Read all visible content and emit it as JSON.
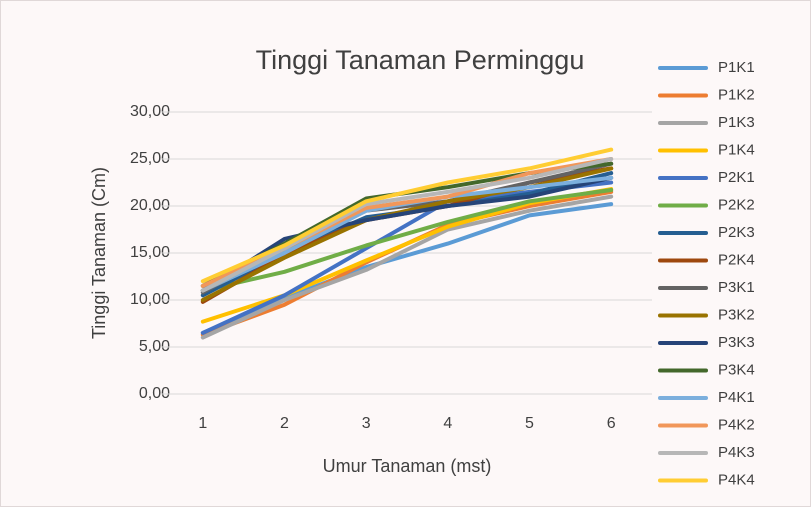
{
  "chart_data": {
    "type": "line",
    "title": "Tinggi Tanaman Perminggu",
    "x_label": "Umur Tanaman (mst)",
    "y_label": "Tinggi Tanaman (Cm)",
    "categories": [
      "1",
      "2",
      "3",
      "4",
      "5",
      "6"
    ],
    "ylim": [
      0,
      30
    ],
    "yticks": [
      {
        "value": 0,
        "label": "0,00"
      },
      {
        "value": 5,
        "label": "5,00"
      },
      {
        "value": 10,
        "label": "10,00"
      },
      {
        "value": 15,
        "label": "15,00"
      },
      {
        "value": 20,
        "label": "20,00"
      },
      {
        "value": 25,
        "label": "25,00"
      },
      {
        "value": 30,
        "label": "30,00"
      }
    ],
    "grid": true,
    "legend": "right",
    "series": [
      {
        "name": "P1K1",
        "color": "#5b9bd5",
        "values": [
          6.5,
          10.2,
          13.5,
          16.0,
          19.0,
          20.2
        ]
      },
      {
        "name": "P1K2",
        "color": "#ed7d31",
        "values": [
          6.3,
          9.5,
          14.0,
          18.0,
          20.0,
          21.5
        ]
      },
      {
        "name": "P1K3",
        "color": "#a5a5a5",
        "values": [
          6.0,
          10.0,
          13.2,
          17.5,
          19.5,
          21.0
        ]
      },
      {
        "name": "P1K4",
        "color": "#ffc000",
        "values": [
          7.7,
          10.5,
          14.2,
          17.8,
          20.3,
          21.8
        ]
      },
      {
        "name": "P2K1",
        "color": "#4472c4",
        "values": [
          6.5,
          10.5,
          15.5,
          20.5,
          21.5,
          22.5
        ]
      },
      {
        "name": "P2K2",
        "color": "#70ad47",
        "values": [
          11.0,
          13.0,
          15.8,
          18.3,
          20.5,
          21.7
        ]
      },
      {
        "name": "P2K3",
        "color": "#255e91",
        "values": [
          10.5,
          15.0,
          18.8,
          20.0,
          21.3,
          23.5
        ]
      },
      {
        "name": "P2K4",
        "color": "#9e480e",
        "values": [
          9.8,
          14.8,
          18.5,
          20.0,
          22.5,
          24.0
        ]
      },
      {
        "name": "P3K1",
        "color": "#636363",
        "values": [
          10.8,
          15.5,
          19.5,
          20.5,
          22.5,
          24.5
        ]
      },
      {
        "name": "P3K2",
        "color": "#997300",
        "values": [
          10.0,
          14.5,
          18.5,
          20.5,
          22.0,
          24.0
        ]
      },
      {
        "name": "P3K3",
        "color": "#264478",
        "values": [
          11.0,
          16.5,
          18.5,
          20.0,
          21.0,
          23.0
        ]
      },
      {
        "name": "P3K4",
        "color": "#43682b",
        "values": [
          11.5,
          16.0,
          20.8,
          22.0,
          23.5,
          24.5
        ]
      },
      {
        "name": "P4K1",
        "color": "#7cafdd",
        "values": [
          11.0,
          15.0,
          19.5,
          21.0,
          22.0,
          23.0
        ]
      },
      {
        "name": "P4K2",
        "color": "#f1975a",
        "values": [
          11.5,
          15.5,
          19.8,
          21.0,
          23.5,
          25.0
        ]
      },
      {
        "name": "P4K3",
        "color": "#b7b7b7",
        "values": [
          11.0,
          15.5,
          20.2,
          21.5,
          23.0,
          25.0
        ]
      },
      {
        "name": "P4K4",
        "color": "#ffcd33",
        "values": [
          12.0,
          15.8,
          20.5,
          22.5,
          24.0,
          26.0
        ]
      }
    ]
  }
}
